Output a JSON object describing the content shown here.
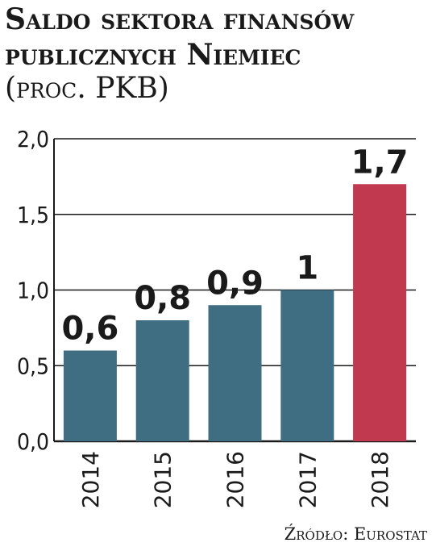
{
  "title": "Saldo sektora finansów publicznych Niemiec",
  "subtitle": "(proc. PKB)",
  "source": "Źródło: Eurostat",
  "colors": {
    "default_bar": "#3f6e82",
    "highlight_bar": "#c0394f",
    "axis": "#1a1a1a",
    "grid": "#1a1a1a"
  },
  "chart_data": {
    "type": "bar",
    "title": "Saldo sektora finansów publicznych Niemiec",
    "subtitle": "(proc. PKB)",
    "categories": [
      "2014",
      "2015",
      "2016",
      "2017",
      "2018"
    ],
    "values": [
      0.6,
      0.8,
      0.9,
      1.0,
      1.7
    ],
    "data_labels": [
      "0,6",
      "0,8",
      "0,9",
      "1",
      "1,7"
    ],
    "highlight_index": 4,
    "ylim": [
      0,
      2.0
    ],
    "yticks": [
      0,
      0.5,
      1.0,
      1.5,
      2.0
    ],
    "ytick_labels": [
      "0,0",
      "0,5",
      "1,0",
      "1,5",
      "2,0"
    ],
    "grid": true,
    "xlabel": "",
    "ylabel": ""
  }
}
